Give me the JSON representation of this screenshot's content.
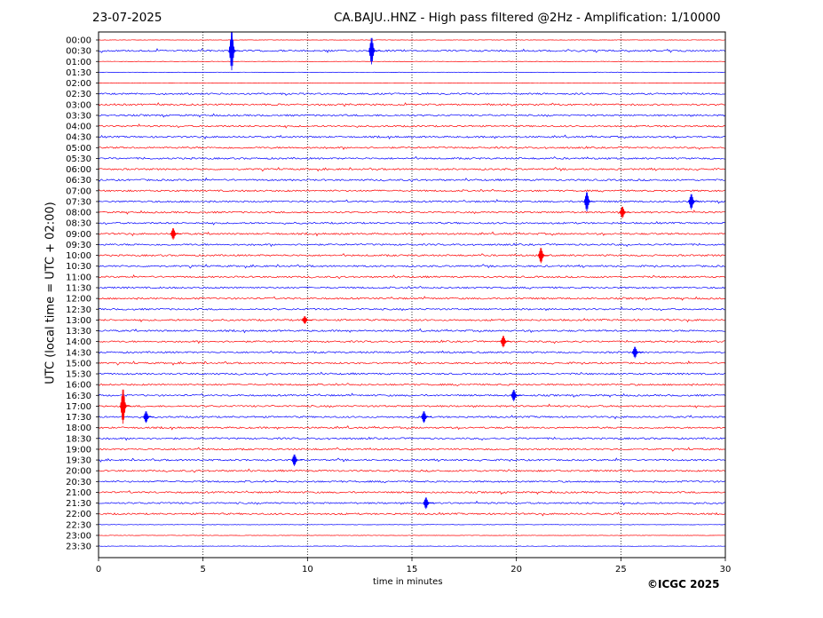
{
  "header": {
    "date": "23-07-2025",
    "title": "CA.BAJU..HNZ - High pass filtered @2Hz - Amplification: 1/10000"
  },
  "footer": {
    "copyright": "©ICGC 2025"
  },
  "colors": {
    "trace_even": "#ff0000",
    "trace_odd": "#0000ff",
    "grid": "#000000",
    "frame": "#000000"
  },
  "chart_data": {
    "type": "line",
    "subtype": "helicorder",
    "title": "CA.BAJU..HNZ - High pass filtered @2Hz - Amplification: 1/10000",
    "xlabel": "time in minutes",
    "ylabel": "UTC (local time = UTC + 02:00)",
    "xlim": [
      0,
      30
    ],
    "xticks": [
      0,
      5,
      10,
      15,
      20,
      25,
      30
    ],
    "rows": [
      "00:00",
      "00:30",
      "01:00",
      "01:30",
      "02:00",
      "02:30",
      "03:00",
      "03:30",
      "04:00",
      "04:30",
      "05:00",
      "05:30",
      "06:00",
      "06:30",
      "07:00",
      "07:30",
      "08:00",
      "08:30",
      "09:00",
      "09:30",
      "10:00",
      "10:30",
      "11:00",
      "11:30",
      "12:00",
      "12:30",
      "13:00",
      "13:30",
      "14:00",
      "14:30",
      "15:00",
      "15:30",
      "16:00",
      "16:30",
      "17:00",
      "17:30",
      "18:00",
      "18:30",
      "19:00",
      "19:30",
      "20:00",
      "20:30",
      "21:00",
      "21:30",
      "22:00",
      "22:30",
      "23:00",
      "23:30"
    ],
    "row_colors": [
      "red",
      "blue"
    ],
    "grid_vertical": "dotted",
    "events": [
      {
        "row": "00:30",
        "minute": 6.5,
        "amplitude": 1.0
      },
      {
        "row": "00:30",
        "minute": 13.2,
        "amplitude": 0.7
      },
      {
        "row": "07:30",
        "minute": 23.5,
        "amplitude": 0.5
      },
      {
        "row": "07:30",
        "minute": 28.5,
        "amplitude": 0.4
      },
      {
        "row": "08:00",
        "minute": 25.2,
        "amplitude": 0.3
      },
      {
        "row": "09:00",
        "minute": 3.7,
        "amplitude": 0.3
      },
      {
        "row": "10:00",
        "minute": 21.3,
        "amplitude": 0.4
      },
      {
        "row": "13:00",
        "minute": 10.0,
        "amplitude": 0.2
      },
      {
        "row": "14:00",
        "minute": 19.5,
        "amplitude": 0.3
      },
      {
        "row": "14:30",
        "minute": 25.8,
        "amplitude": 0.3
      },
      {
        "row": "16:30",
        "minute": 20.0,
        "amplitude": 0.3
      },
      {
        "row": "17:00",
        "minute": 1.3,
        "amplitude": 0.9
      },
      {
        "row": "17:30",
        "minute": 2.4,
        "amplitude": 0.3
      },
      {
        "row": "17:30",
        "minute": 15.7,
        "amplitude": 0.3
      },
      {
        "row": "19:30",
        "minute": 9.5,
        "amplitude": 0.3
      },
      {
        "row": "21:30",
        "minute": 15.8,
        "amplitude": 0.3
      }
    ]
  }
}
